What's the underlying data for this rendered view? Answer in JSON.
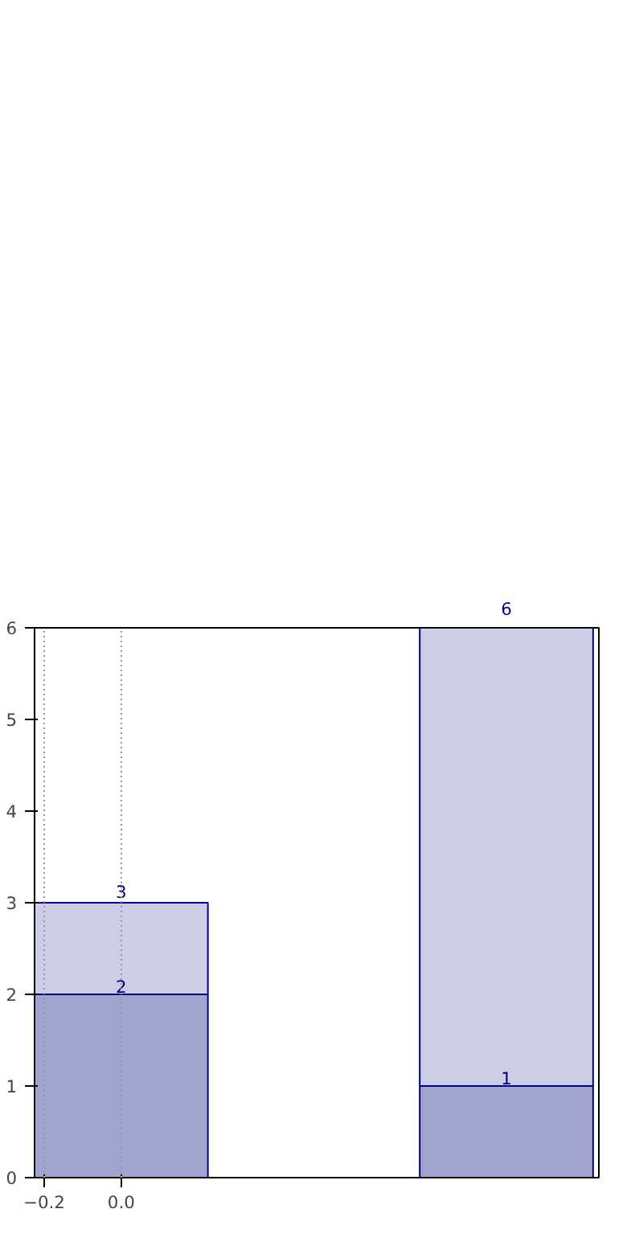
{
  "chart_data": {
    "type": "bar",
    "stacked": true,
    "x": [
      0,
      1
    ],
    "series": [
      {
        "color": "#a3a3d0",
        "values": [
          2,
          1
        ],
        "value_labels": [
          "2",
          "1"
        ]
      },
      {
        "color": "#cdcde5",
        "values": [
          1,
          5
        ]
      }
    ],
    "totals": [
      "3",
      "6"
    ],
    "xlim": [
      -0.225,
      1.24
    ],
    "xticks": [
      {
        "value": -0.2,
        "label": "−0.2"
      },
      {
        "value": 0,
        "label": "0.0"
      }
    ],
    "ylim": [
      0,
      6
    ],
    "yticks": [
      0,
      1,
      2,
      3,
      4,
      5,
      6
    ],
    "grid": "x"
  }
}
